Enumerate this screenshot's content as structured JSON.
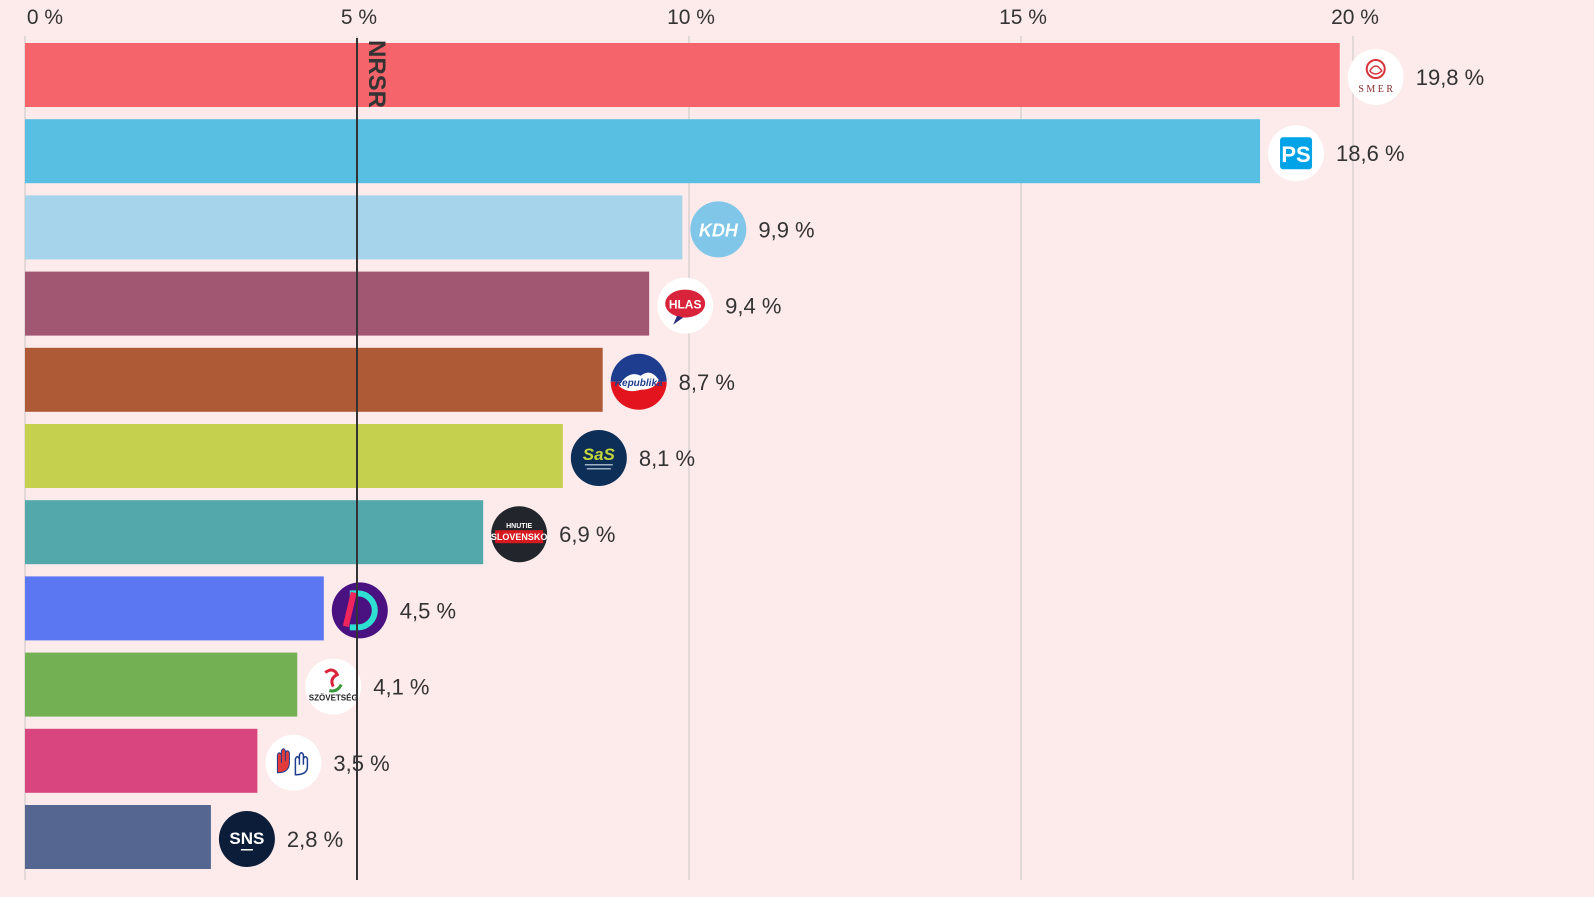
{
  "chart_data": {
    "type": "bar",
    "orientation": "horizontal",
    "title": "",
    "xlabel": "",
    "ylabel": "",
    "xlim": [
      0,
      20
    ],
    "grid": true,
    "tick_labels": [
      "0 %",
      "5 %",
      "10 %",
      "15 %",
      "20 %"
    ],
    "tick_values": [
      0,
      5,
      10,
      15,
      20
    ],
    "threshold": {
      "value": 5,
      "label": "NRSR"
    },
    "categories": [
      "SMER",
      "PS",
      "KDH",
      "HLAS",
      "Republika",
      "SaS",
      "Hnutie Slovensko",
      "Demokrati",
      "Szövetség",
      "Slovensko hands",
      "SNS"
    ],
    "values": [
      19.8,
      18.6,
      9.9,
      9.4,
      8.7,
      8.1,
      6.9,
      4.5,
      4.1,
      3.5,
      2.8
    ],
    "value_labels": [
      "19,8 %",
      "18,6 %",
      "9,9 %",
      "9,4 %",
      "8,7 %",
      "8,1 %",
      "6,9 %",
      "4,5 %",
      "4,1 %",
      "3,5 %",
      "2,8 %"
    ],
    "colors": [
      "#f4646a",
      "#58bfe2",
      "#a5d4eb",
      "#a15672",
      "#ae5a37",
      "#c6d04f",
      "#52a8ab",
      "#5b77f2",
      "#73b054",
      "#d8457f",
      "#556790"
    ],
    "logos": [
      {
        "icon": "smer-rose-icon",
        "text": "SMER"
      },
      {
        "icon": "ps-logo-icon",
        "text": "PS"
      },
      {
        "icon": "kdh-logo-icon",
        "text": "KDH"
      },
      {
        "icon": "hlas-logo-icon",
        "text": "HLAS"
      },
      {
        "icon": "republika-logo-icon",
        "text": "Republika"
      },
      {
        "icon": "sas-logo-icon",
        "text": "SaS"
      },
      {
        "icon": "hnutie-slovensko-logo-icon",
        "text": "HNUTIE SLOVENSKO"
      },
      {
        "icon": "demokrati-logo-icon",
        "text": "D"
      },
      {
        "icon": "szovetseg-logo-icon",
        "text": "SZÖVETSÉG"
      },
      {
        "icon": "hands-logo-icon",
        "text": ""
      },
      {
        "icon": "sns-logo-icon",
        "text": "SNS"
      }
    ]
  }
}
